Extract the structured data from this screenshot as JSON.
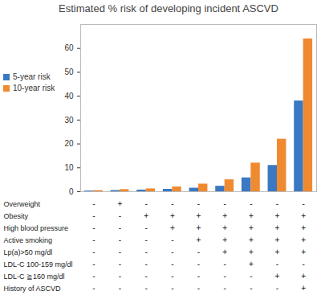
{
  "chart_data": {
    "type": "bar",
    "title": "Estimated % risk of developing incident ASCVD",
    "categories": [
      null,
      null,
      null,
      null,
      null,
      null,
      null,
      null,
      null
    ],
    "series": [
      {
        "name": "5-year risk",
        "color": "#3a78c3",
        "values": [
          0.3,
          0.5,
          0.7,
          1.0,
          1.5,
          2.3,
          5.8,
          11,
          38
        ]
      },
      {
        "name": "10-year risk",
        "color": "#f08a30",
        "values": [
          0.5,
          0.9,
          1.2,
          2.0,
          3.2,
          5.0,
          12,
          22,
          64
        ]
      }
    ],
    "ylim": [
      0,
      70
    ],
    "yticks": [
      0,
      10,
      20,
      30,
      40,
      50,
      60
    ],
    "grid": false,
    "legend": "left"
  },
  "table": {
    "rows": [
      {
        "label": "Overweight",
        "cells": [
          "-",
          "+",
          "-",
          "-",
          "-",
          "-",
          "-",
          "-",
          "-"
        ]
      },
      {
        "label": "Obesity",
        "cells": [
          "-",
          "-",
          "+",
          "+",
          "+",
          "+",
          "+",
          "+",
          "+"
        ]
      },
      {
        "label": "High blood pressure",
        "cells": [
          "-",
          "-",
          "-",
          "+",
          "+",
          "+",
          "+",
          "+",
          "+"
        ]
      },
      {
        "label": "Active smoking",
        "cells": [
          "-",
          "-",
          "-",
          "-",
          "+",
          "+",
          "+",
          "+",
          "+"
        ]
      },
      {
        "label": "Lp(a)>50 mg/dl",
        "cells": [
          "-",
          "-",
          "-",
          "-",
          "-",
          "+",
          "+",
          "+",
          "+"
        ]
      },
      {
        "label": "LDL-C 100-159 mg/dl",
        "cells": [
          "-",
          "-",
          "-",
          "-",
          "-",
          "-",
          "+",
          "-",
          "-"
        ]
      },
      {
        "label": "LDL-C ≧160 mg/dl",
        "cells": [
          "-",
          "-",
          "-",
          "-",
          "-",
          "-",
          "-",
          "+",
          "+"
        ]
      },
      {
        "label": "History of ASCVD",
        "cells": [
          "-",
          "-",
          "-",
          "-",
          "-",
          "-",
          "-",
          "-",
          "+"
        ]
      }
    ]
  }
}
